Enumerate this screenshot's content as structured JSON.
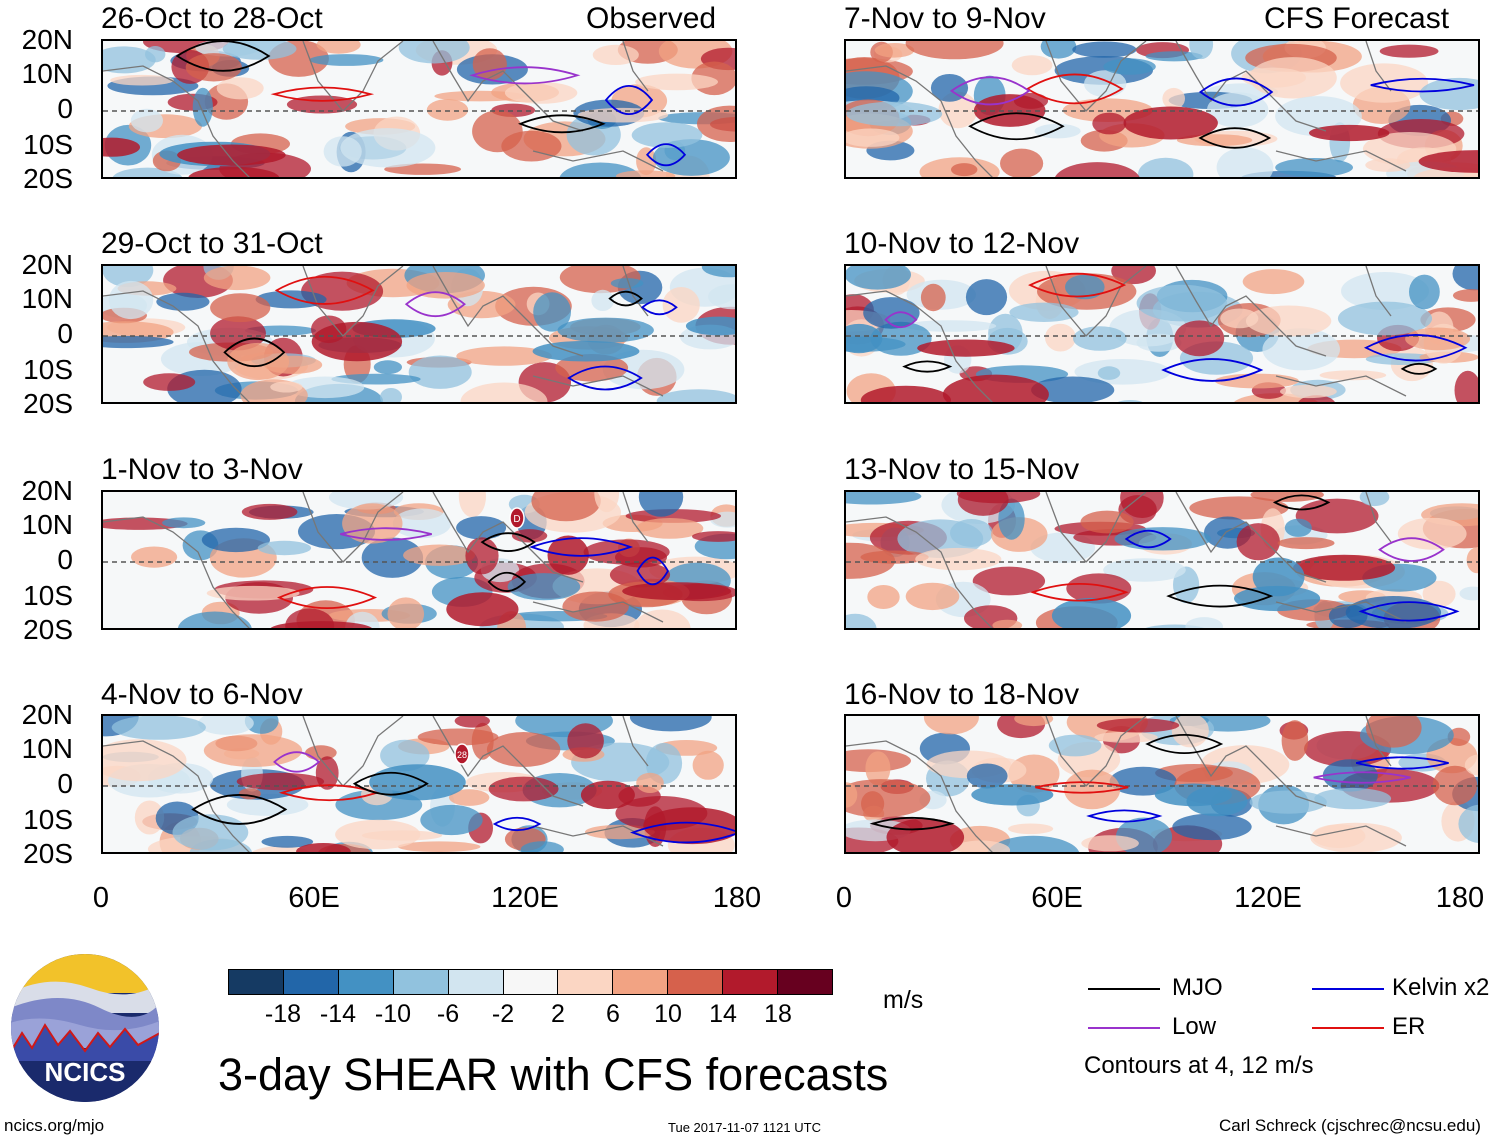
{
  "panels": [
    {
      "title": "26-Oct to 28-Oct",
      "tag": "Observed"
    },
    {
      "title": "29-Oct to 31-Oct",
      "tag": ""
    },
    {
      "title": "1-Nov to 3-Nov",
      "tag": ""
    },
    {
      "title": "4-Nov to 6-Nov",
      "tag": ""
    },
    {
      "title": "7-Nov to 9-Nov",
      "tag": "CFS Forecast"
    },
    {
      "title": "10-Nov to 12-Nov",
      "tag": ""
    },
    {
      "title": "13-Nov to 15-Nov",
      "tag": ""
    },
    {
      "title": "16-Nov to 18-Nov",
      "tag": ""
    }
  ],
  "lat_labels": [
    "20N",
    "10N",
    "0",
    "10S",
    "20S"
  ],
  "lon_labels": [
    "0",
    "60E",
    "120E",
    "180"
  ],
  "storm_labels": [
    "D",
    "28"
  ],
  "colorbar": {
    "colors": [
      "#153a63",
      "#2266a9",
      "#4391c3",
      "#91c2de",
      "#d2e5f0",
      "#f7f7f7",
      "#fbd6c3",
      "#f2a383",
      "#d6614c",
      "#b21a2c",
      "#67001f"
    ],
    "labels": [
      "-18",
      "-14",
      "-10",
      "-6",
      "-2",
      "2",
      "6",
      "10",
      "14",
      "18"
    ],
    "unit": "m/s"
  },
  "legend": {
    "items": [
      {
        "label": "MJO",
        "color": "#000000"
      },
      {
        "label": "Kelvin x2",
        "color": "#0000dd"
      },
      {
        "label": "Low",
        "color": "#9933cc"
      },
      {
        "label": "ER",
        "color": "#e01010"
      }
    ],
    "note": "Contours at 4, 12 m/s"
  },
  "logo": {
    "text": "NCICS"
  },
  "main_title": "3-day SHEAR with CFS forecasts",
  "footer": {
    "left": "ncics.org/mjo",
    "center": "Tue 2017-11-07 1121 UTC",
    "right": "Carl Schreck (cjschrec@ncsu.edu)"
  }
}
